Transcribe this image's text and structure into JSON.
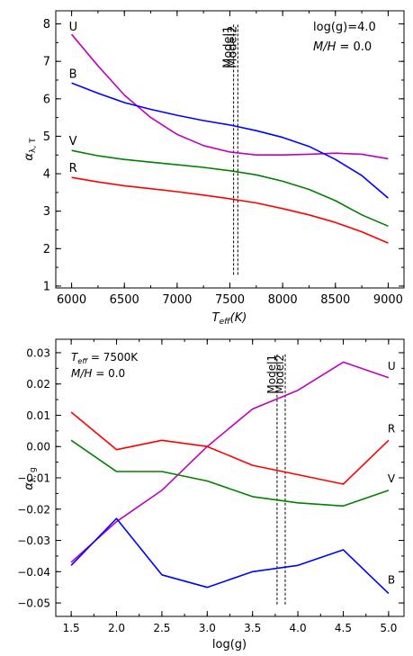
{
  "chart_data": [
    {
      "type": "line",
      "xlabel_main": "T",
      "xlabel_sub": "eff",
      "xlabel_tail": "(K)",
      "ylabel_main": "α",
      "ylabel_sub": "λ, T",
      "xlim": [
        5850,
        9150
      ],
      "ylim": [
        0.95,
        8.35
      ],
      "xticks": [
        6000,
        6500,
        7000,
        7500,
        8000,
        8500,
        9000
      ],
      "yticks": [
        1,
        2,
        3,
        4,
        5,
        6,
        7,
        8
      ],
      "annotations": {
        "logg": "log(g)=4.0",
        "metal_main": "M/H",
        "metal_tail": " = 0.0"
      },
      "vlines": [
        {
          "label": "Model1",
          "x": 7535,
          "ymin": 1.3,
          "ymax": 8.0
        },
        {
          "label": "Model2",
          "x": 7575,
          "ymin": 1.3,
          "ymax": 8.0
        }
      ],
      "series": [
        {
          "name": "U",
          "color": "#bf00bf",
          "x": [
            6000,
            6250,
            6500,
            6750,
            7000,
            7250,
            7500,
            7750,
            8000,
            8250,
            8500,
            8750,
            9000
          ],
          "values": [
            7.72,
            6.88,
            6.1,
            5.5,
            5.05,
            4.75,
            4.58,
            4.5,
            4.5,
            4.52,
            4.55,
            4.52,
            4.4
          ]
        },
        {
          "name": "B",
          "color": "#0000ff",
          "x": [
            6000,
            6250,
            6500,
            6750,
            7000,
            7250,
            7500,
            7750,
            8000,
            8250,
            8500,
            8750,
            9000
          ],
          "values": [
            6.42,
            6.15,
            5.9,
            5.72,
            5.56,
            5.42,
            5.3,
            5.15,
            4.97,
            4.73,
            4.38,
            3.95,
            3.35
          ]
        },
        {
          "name": "V",
          "color": "#008000",
          "x": [
            6000,
            6250,
            6500,
            6750,
            7000,
            7250,
            7500,
            7750,
            8000,
            8250,
            8500,
            8750,
            9000
          ],
          "values": [
            4.62,
            4.48,
            4.38,
            4.31,
            4.24,
            4.17,
            4.08,
            3.97,
            3.8,
            3.58,
            3.28,
            2.9,
            2.6
          ]
        },
        {
          "name": "R",
          "color": "#ff0000",
          "x": [
            6000,
            6250,
            6500,
            6750,
            7000,
            7250,
            7500,
            7750,
            8000,
            8250,
            8500,
            8750,
            9000
          ],
          "values": [
            3.9,
            3.78,
            3.68,
            3.6,
            3.52,
            3.43,
            3.33,
            3.22,
            3.07,
            2.9,
            2.7,
            2.45,
            2.15
          ]
        }
      ]
    },
    {
      "type": "line",
      "xlabel": "log(g)",
      "ylabel_main": "α",
      "ylabel_sub": "λ, g",
      "xlim": [
        1.33,
        5.17
      ],
      "ylim": [
        -0.0543,
        0.0343
      ],
      "xticks": [
        1.5,
        2.0,
        2.5,
        3.0,
        3.5,
        4.0,
        4.5,
        5.0
      ],
      "xtick_labels": [
        "1.5",
        "2.0",
        "2.5",
        "3.0",
        "3.5",
        "4.0",
        "4.5",
        "5.0"
      ],
      "yticks": [
        0.03,
        0.02,
        0.01,
        0.0,
        -0.01,
        -0.02,
        -0.03,
        -0.04,
        -0.05
      ],
      "ytick_labels": [
        "0.03",
        "0.02",
        "0.01",
        "0.00",
        "−0.01",
        "−0.02",
        "−0.03",
        "−0.04",
        "−0.05"
      ],
      "annotations": {
        "teff_main": "T",
        "teff_sub": "eff",
        "teff_tail": " = 7500K",
        "metal_main": "M/H",
        "metal_tail": " = 0.0"
      },
      "vlines": [
        {
          "label": "Model1",
          "x": 3.77,
          "ymin": -0.0505,
          "ymax": 0.03
        },
        {
          "label": "Model2",
          "x": 3.86,
          "ymin": -0.0505,
          "ymax": 0.03
        }
      ],
      "series": [
        {
          "name": "U",
          "color": "#bf00bf",
          "x": [
            1.5,
            2.0,
            2.5,
            3.0,
            3.5,
            4.0,
            4.5,
            5.0
          ],
          "values": [
            -0.037,
            -0.024,
            -0.014,
            0.0,
            0.012,
            0.018,
            0.027,
            0.022
          ]
        },
        {
          "name": "R",
          "color": "#ff0000",
          "x": [
            1.5,
            2.0,
            2.5,
            3.0,
            3.5,
            4.0,
            4.5,
            5.0
          ],
          "values": [
            0.011,
            -0.001,
            0.002,
            0.0,
            -0.006,
            -0.009,
            -0.012,
            0.002
          ]
        },
        {
          "name": "V",
          "color": "#008000",
          "x": [
            1.5,
            2.0,
            2.5,
            3.0,
            3.5,
            4.0,
            4.5,
            5.0
          ],
          "values": [
            0.002,
            -0.008,
            -0.008,
            -0.011,
            -0.016,
            -0.018,
            -0.019,
            -0.014
          ]
        },
        {
          "name": "B",
          "color": "#0000ff",
          "x": [
            1.5,
            2.0,
            2.5,
            3.0,
            3.5,
            4.0,
            4.5,
            5.0
          ],
          "values": [
            -0.038,
            -0.023,
            -0.041,
            -0.045,
            -0.04,
            -0.038,
            -0.033,
            -0.047
          ]
        }
      ]
    }
  ]
}
